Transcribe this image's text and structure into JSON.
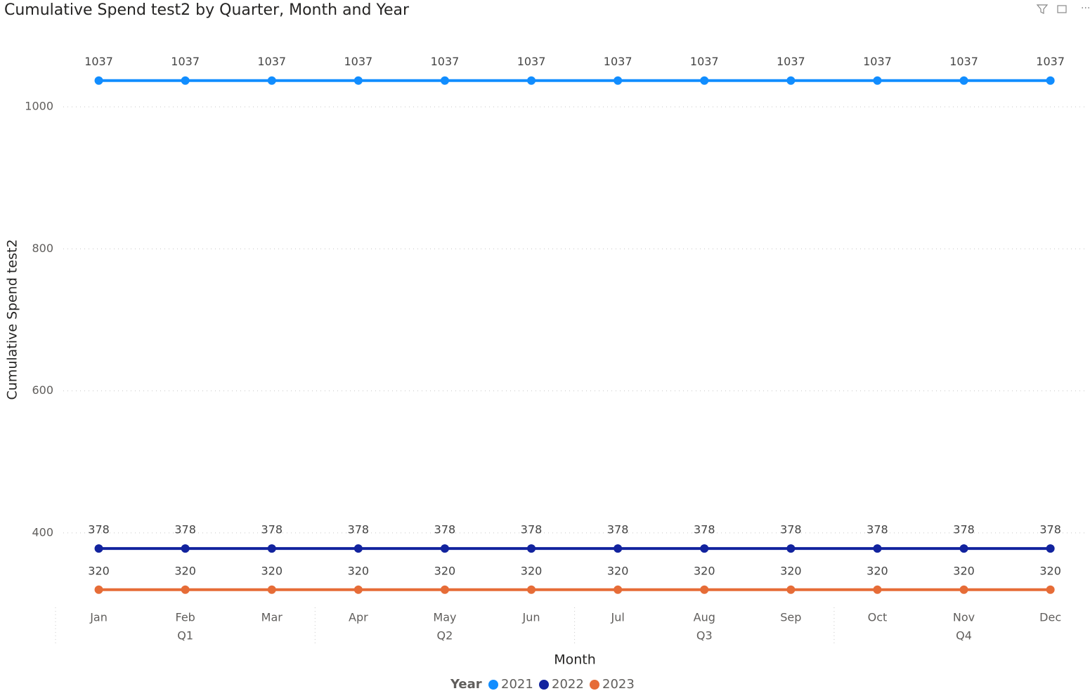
{
  "chart_data": {
    "type": "line",
    "title": "Cumulative Spend test2 by Quarter, Month and Year",
    "x_label": "Month",
    "y_label": "Cumulative Spend test2",
    "legend_title": "Year",
    "categories": [
      "Jan",
      "Feb",
      "Mar",
      "Apr",
      "May",
      "Jun",
      "Jul",
      "Aug",
      "Sep",
      "Oct",
      "Nov",
      "Dec"
    ],
    "quarters": [
      "Q1",
      "Q2",
      "Q3",
      "Q4"
    ],
    "series": [
      {
        "name": "2021",
        "color": "#118DFF",
        "values": [
          1037,
          1037,
          1037,
          1037,
          1037,
          1037,
          1037,
          1037,
          1037,
          1037,
          1037,
          1037
        ]
      },
      {
        "name": "2022",
        "color": "#12239E",
        "values": [
          378,
          378,
          378,
          378,
          378,
          378,
          378,
          378,
          378,
          378,
          378,
          378
        ]
      },
      {
        "name": "2023",
        "color": "#E66C37",
        "values": [
          320,
          320,
          320,
          320,
          320,
          320,
          320,
          320,
          320,
          320,
          320,
          320
        ]
      }
    ],
    "ylim": [
      300,
      1100
    ],
    "yticks": [
      400,
      600,
      800,
      1000
    ],
    "grid": true
  }
}
